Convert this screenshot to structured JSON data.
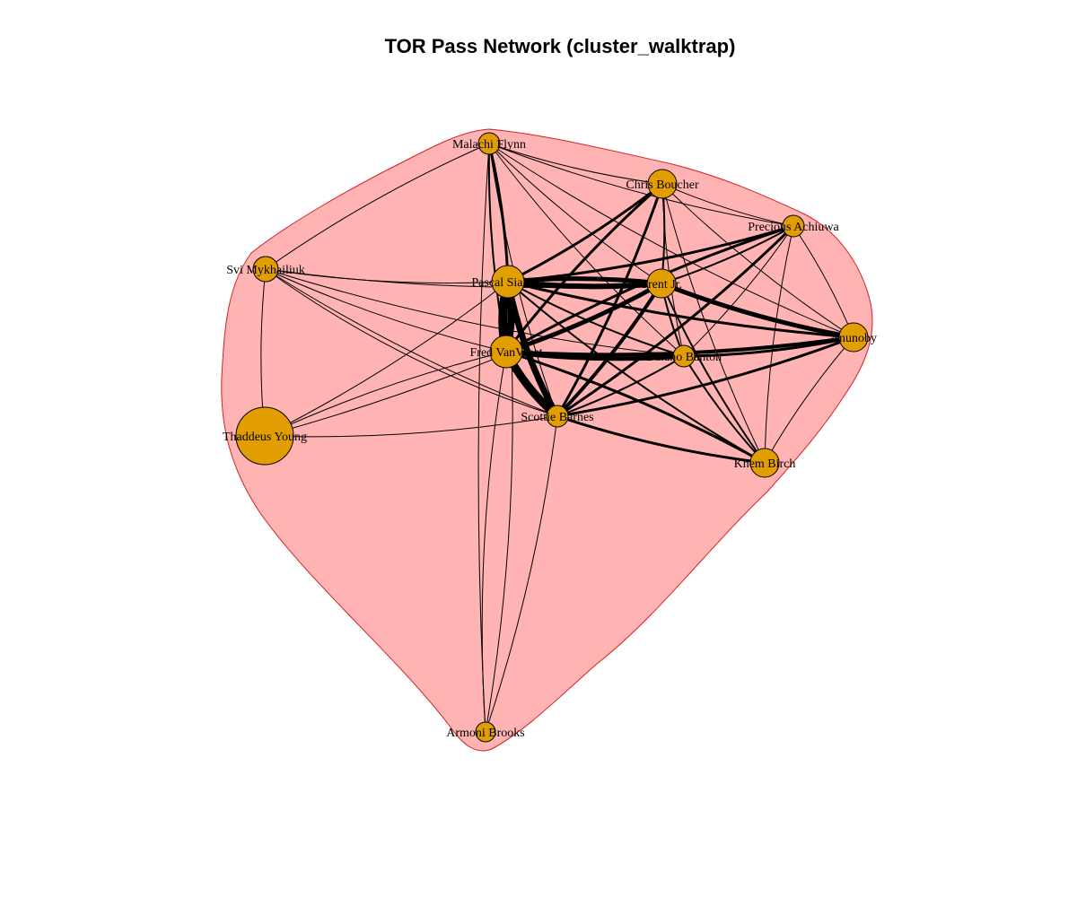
{
  "title": "TOR Pass Network (cluster_walktrap)",
  "colors": {
    "hull_fill": "#ffb3b3",
    "hull_stroke": "#d62020",
    "node_fill": "#e29e00",
    "edge": "#000000"
  },
  "nodes": [
    {
      "id": "malachi",
      "label": "Malachi Flynn"
    },
    {
      "id": "boucher",
      "label": "Chris Boucher"
    },
    {
      "id": "achiuwa",
      "label": "Precious Achiuwa"
    },
    {
      "id": "mykhailiuk",
      "label": "Svi Mykhailiuk"
    },
    {
      "id": "siakam",
      "label": "Pascal Siakam"
    },
    {
      "id": "trent",
      "label": "Trent Jr."
    },
    {
      "id": "anunoby",
      "label": "Anunoby"
    },
    {
      "id": "vanvleet",
      "label": "Fred VanVleet"
    },
    {
      "id": "banton",
      "label": "Dalano Banton"
    },
    {
      "id": "barnes",
      "label": "Scottie Barnes"
    },
    {
      "id": "young",
      "label": "Thaddeus Young"
    },
    {
      "id": "birch",
      "label": "Khem Birch"
    },
    {
      "id": "brooks",
      "label": "Armoni Brooks"
    }
  ]
}
